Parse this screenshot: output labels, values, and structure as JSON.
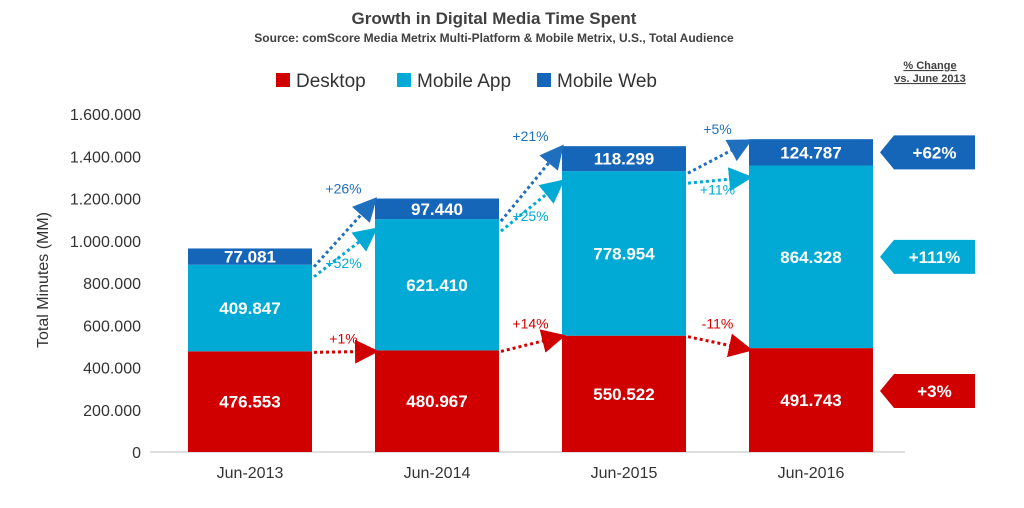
{
  "chart_data": {
    "type": "bar",
    "stacked": true,
    "title": "Growth in Digital Media Time Spent",
    "subtitle": "Source: comScore Media Metrix Multi-Platform & Mobile Metrix, U.S., Total Audience",
    "ylabel": "Total Minutes (MM)",
    "ylim": [
      0,
      1600000
    ],
    "yticks": [
      "0",
      "200.000",
      "400.000",
      "600.000",
      "800.000",
      "1.000.000",
      "1.200.000",
      "1.400.000",
      "1.600.000"
    ],
    "categories": [
      "Jun-2013",
      "Jun-2014",
      "Jun-2015",
      "Jun-2016"
    ],
    "legend_position": "top",
    "series": [
      {
        "name": "Desktop",
        "color": "#d00000",
        "values": [
          476553,
          480967,
          550522,
          491743
        ],
        "labels": [
          "476.553",
          "480.967",
          "550.522",
          "491.743"
        ]
      },
      {
        "name": "Mobile App",
        "color": "#00aad4",
        "values": [
          409847,
          621410,
          778954,
          864328
        ],
        "labels": [
          "409.847",
          "621.410",
          "778.954",
          "864.328"
        ]
      },
      {
        "name": "Mobile Web",
        "color": "#1565b8",
        "values": [
          77081,
          97440,
          118299,
          124787
        ],
        "labels": [
          "77.081",
          "97.440",
          "118.299",
          "124.787"
        ]
      }
    ],
    "growth": [
      [
        "+1%",
        "+14%",
        "-11%"
      ],
      [
        "+52%",
        "+25%",
        "+11%"
      ],
      [
        "+26%",
        "+21%",
        "+5%"
      ]
    ],
    "change_header": [
      "% Change",
      "vs. June 2013"
    ],
    "total_change": [
      "+3%",
      "+111%",
      "+62%"
    ]
  }
}
